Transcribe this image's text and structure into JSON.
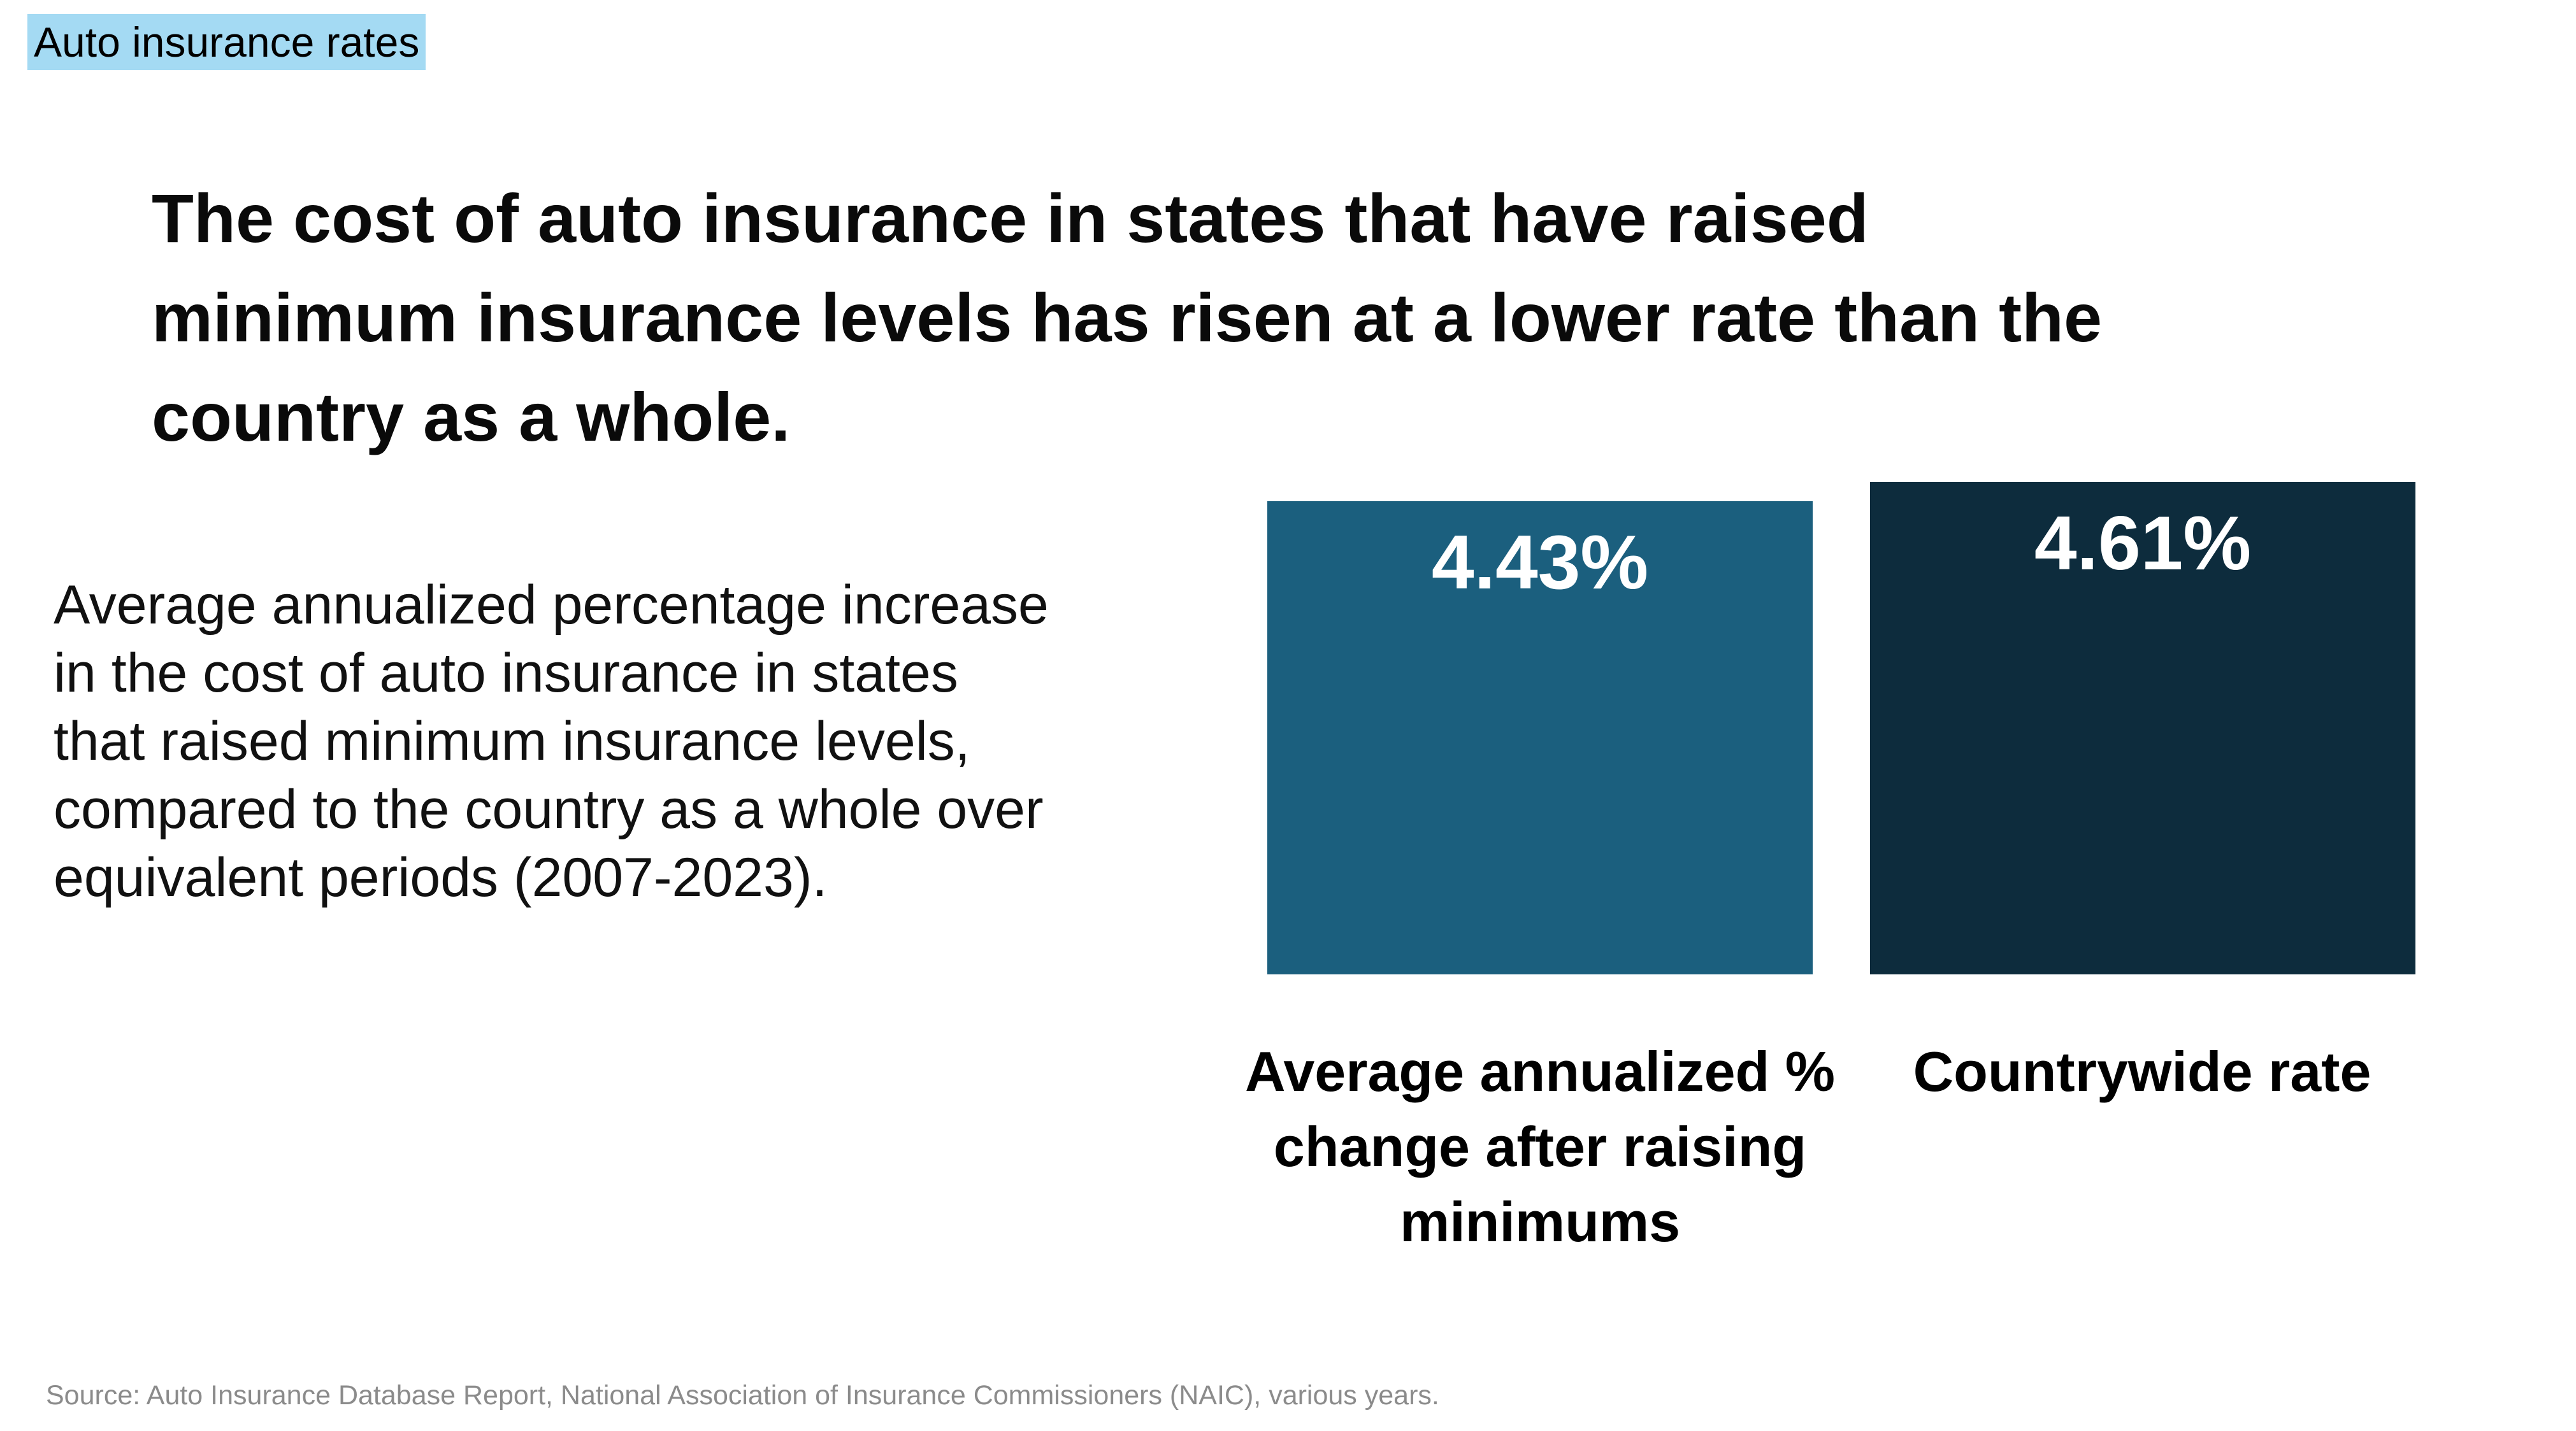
{
  "page": {
    "background": "#ffffff"
  },
  "tag": {
    "label": "Auto insurance rates",
    "highlight_color": "#a4daf3",
    "text_color": "#000000"
  },
  "headline": {
    "lines": [
      "The cost of auto insurance in states that have raised",
      "minimum insurance levels has risen at a lower rate than the",
      "country as a whole."
    ]
  },
  "description": {
    "lines": [
      "Average annualized percentage increase",
      "in the cost of auto insurance in states",
      "that raised minimum insurance levels,",
      "compared to the country as a whole over",
      "equivalent periods (2007-2023)."
    ]
  },
  "chart": {
    "bars": [
      {
        "value": 4.43,
        "value_label": "4.43%",
        "color": "#1b5f7e",
        "label_lines": [
          "Average annualized %",
          "change after raising",
          "minimums"
        ]
      },
      {
        "value": 4.61,
        "value_label": "4.61%",
        "color": "#0d2c3d",
        "label_lines": [
          "Countrywide rate"
        ]
      }
    ]
  },
  "source": {
    "text": "Source: Auto Insurance Database Report, National Association of Insurance Commissioners (NAIC), various years.",
    "color": "#8b8b8b"
  },
  "chart_data": {
    "type": "bar",
    "kicker": "Auto insurance rates",
    "title": "The cost of auto insurance in states that have raised minimum insurance levels has risen at a lower rate than the country as a whole.",
    "subtitle": "Average annualized percentage increase in the cost of auto insurance in states that raised minimum insurance levels, compared to the country as a whole over equivalent periods (2007-2023).",
    "categories": [
      "Average annualized % change after raising minimums",
      "Countrywide rate"
    ],
    "values": [
      4.43,
      4.61
    ],
    "data_labels": [
      "4.43%",
      "4.61%"
    ],
    "bar_colors": [
      "#1b5f7e",
      "#0d2c3d"
    ],
    "xlabel": "",
    "ylabel": "",
    "ylim": [
      0,
      4.61
    ],
    "grid": false,
    "legend": false,
    "value_axis_hidden": true,
    "source": "Source: Auto Insurance Database Report, National Association of Insurance Commissioners (NAIC), various years."
  }
}
